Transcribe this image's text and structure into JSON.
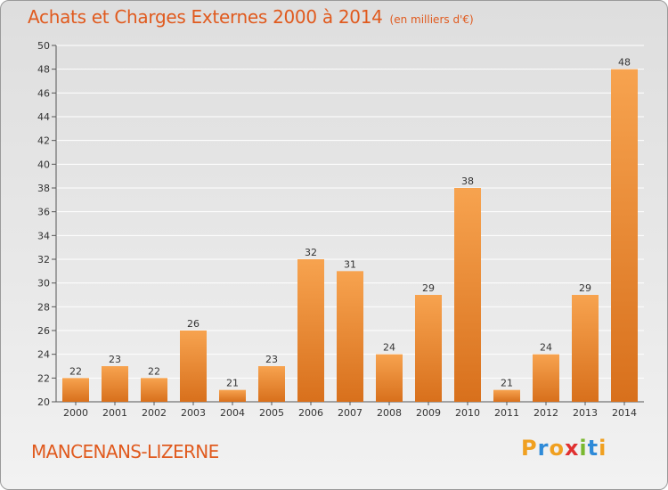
{
  "header": {
    "title": "Achats et Charges Externes 2000 à 2014",
    "unit": "(en milliers d'€)"
  },
  "footer": {
    "place": "MANCENANS-LIZERNE",
    "logo": [
      "P",
      "r",
      "o",
      "x",
      "i",
      "t",
      "i"
    ],
    "logo_colors": [
      "#f0a020",
      "#2e8ad8",
      "#f0a020",
      "#e03030",
      "#7ab830",
      "#2e8ad8",
      "#f0a020"
    ]
  },
  "colors": {
    "bar_light": "#f7a34f",
    "bar_dark": "#d8701c",
    "title": "#e05a1e",
    "grid": "#ffffff"
  },
  "chart_data": {
    "type": "bar",
    "title": "Achats et Charges Externes 2000 à 2014",
    "subtitle": "(en milliers d'€)",
    "categories": [
      "2000",
      "2001",
      "2002",
      "2003",
      "2004",
      "2005",
      "2006",
      "2007",
      "2008",
      "2009",
      "2010",
      "2011",
      "2012",
      "2013",
      "2014"
    ],
    "values": [
      22,
      23,
      22,
      26,
      21,
      23,
      32,
      31,
      24,
      29,
      38,
      21,
      24,
      29,
      48
    ],
    "ylim": [
      20,
      50
    ],
    "yticks": [
      20,
      22,
      24,
      26,
      28,
      30,
      32,
      34,
      36,
      38,
      40,
      42,
      44,
      46,
      48,
      50
    ],
    "grid": true,
    "xlabel": "",
    "ylabel": ""
  }
}
